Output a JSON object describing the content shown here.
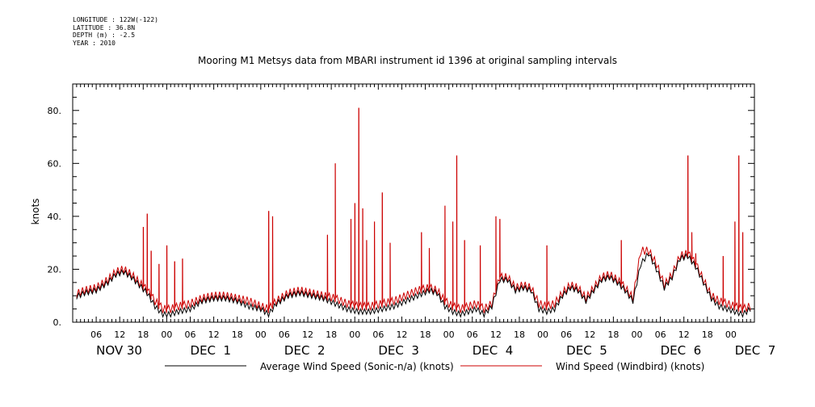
{
  "header": {
    "longitude": "LONGITUDE : 122W(-122)",
    "latitude": "LATITUDE : 36.8N",
    "depth": "DEPTH (m) : -2.5",
    "year": "YEAR : 2010"
  },
  "chart_data": {
    "type": "line",
    "title": "Mooring M1 Metsys data from MBARI instrument id 1396 at original sampling intervals",
    "ylabel": "knots",
    "xlabel": "",
    "ylim": [
      0,
      90
    ],
    "yticks": [
      0,
      20,
      40,
      60,
      80
    ],
    "ytick_labels": [
      "0.",
      "20.",
      "40.",
      "60.",
      "80."
    ],
    "xlim": [
      0,
      174
    ],
    "x_units": "hours since NOV 30 00:00, 2010",
    "hour_tick_labels": [
      {
        "x": 6,
        "label": "06"
      },
      {
        "x": 12,
        "label": "12"
      },
      {
        "x": 18,
        "label": "18"
      },
      {
        "x": 24,
        "label": "00"
      },
      {
        "x": 30,
        "label": "06"
      },
      {
        "x": 36,
        "label": "12"
      },
      {
        "x": 42,
        "label": "18"
      },
      {
        "x": 48,
        "label": "00"
      },
      {
        "x": 54,
        "label": "06"
      },
      {
        "x": 60,
        "label": "12"
      },
      {
        "x": 66,
        "label": "18"
      },
      {
        "x": 72,
        "label": "00"
      },
      {
        "x": 78,
        "label": "06"
      },
      {
        "x": 84,
        "label": "12"
      },
      {
        "x": 90,
        "label": "18"
      },
      {
        "x": 96,
        "label": "00"
      },
      {
        "x": 102,
        "label": "06"
      },
      {
        "x": 108,
        "label": "12"
      },
      {
        "x": 114,
        "label": "18"
      },
      {
        "x": 120,
        "label": "00"
      },
      {
        "x": 126,
        "label": "06"
      },
      {
        "x": 132,
        "label": "12"
      },
      {
        "x": 138,
        "label": "18"
      },
      {
        "x": 144,
        "label": "00"
      },
      {
        "x": 150,
        "label": "06"
      },
      {
        "x": 156,
        "label": "12"
      },
      {
        "x": 162,
        "label": "18"
      },
      {
        "x": 168,
        "label": "00"
      }
    ],
    "day_labels": [
      {
        "x": 6,
        "label": "NOV 30"
      },
      {
        "x": 30,
        "label": "DEC  1"
      },
      {
        "x": 54,
        "label": "DEC  2"
      },
      {
        "x": 78,
        "label": "DEC  3"
      },
      {
        "x": 102,
        "label": "DEC  4"
      },
      {
        "x": 126,
        "label": "DEC  5"
      },
      {
        "x": 150,
        "label": "DEC  6"
      },
      {
        "x": 169,
        "label": "DEC  7"
      }
    ],
    "series": [
      {
        "name": "Average Wind Speed (Sonic-n/a) (knots)",
        "color": "#000000",
        "x": [
          0,
          3,
          6,
          9,
          11,
          13,
          15,
          17,
          19,
          21,
          23,
          25,
          27,
          30,
          33,
          36,
          39,
          42,
          45,
          48,
          50,
          52,
          55,
          58,
          61,
          64,
          67,
          70,
          73,
          76,
          79,
          82,
          85,
          88,
          91,
          93,
          95,
          97,
          99,
          101,
          103,
          105,
          107,
          109,
          111,
          113,
          115,
          117,
          119,
          121,
          123,
          125,
          127,
          129,
          131,
          133,
          135,
          137,
          139,
          141,
          143,
          145,
          147,
          149,
          151,
          153,
          155,
          157,
          159,
          161,
          163,
          165,
          167,
          169,
          171,
          173
        ],
        "y": [
          9,
          11,
          12,
          15,
          18,
          19,
          17,
          14,
          11,
          6,
          3,
          3,
          4,
          5,
          8,
          9,
          9,
          8,
          6,
          5,
          3,
          7,
          10,
          11,
          10,
          9,
          7,
          5,
          4,
          4,
          5,
          6,
          8,
          10,
          12,
          11,
          6,
          4,
          3,
          4,
          5,
          3,
          6,
          16,
          16,
          12,
          13,
          12,
          5,
          4,
          5,
          10,
          13,
          12,
          8,
          12,
          16,
          17,
          15,
          12,
          8,
          22,
          26,
          20,
          13,
          17,
          24,
          25,
          21,
          15,
          9,
          6,
          5,
          4,
          3,
          5
        ]
      },
      {
        "name": "Wind Speed (Windbird) (knots)",
        "color": "#cc0000",
        "x": [
          0,
          3,
          6,
          9,
          11,
          13,
          15,
          17,
          19,
          21,
          23,
          25,
          27,
          30,
          33,
          36,
          39,
          42,
          45,
          48,
          50,
          52,
          55,
          58,
          61,
          64,
          67,
          70,
          73,
          76,
          79,
          82,
          85,
          88,
          91,
          93,
          95,
          97,
          99,
          101,
          103,
          105,
          107,
          109,
          111,
          113,
          115,
          117,
          119,
          121,
          123,
          125,
          127,
          129,
          131,
          133,
          135,
          137,
          139,
          141,
          143,
          145,
          147,
          149,
          151,
          153,
          155,
          157,
          159,
          161,
          163,
          165,
          167,
          169,
          171,
          173
        ],
        "y": [
          10,
          12,
          13,
          16,
          19,
          20,
          18,
          15,
          12,
          8,
          5,
          5,
          6,
          7,
          9,
          10,
          10,
          9,
          8,
          6,
          5,
          8,
          11,
          12,
          11,
          10,
          9,
          7,
          6,
          6,
          7,
          8,
          10,
          12,
          13,
          12,
          8,
          6,
          5,
          6,
          7,
          5,
          7,
          17,
          17,
          13,
          14,
          13,
          7,
          6,
          7,
          11,
          14,
          13,
          9,
          13,
          17,
          18,
          16,
          13,
          9,
          27,
          27,
          22,
          14,
          18,
          25,
          26,
          22,
          16,
          10,
          8,
          7,
          6,
          5,
          6
        ],
        "spikes": [
          {
            "x": 18,
            "y": 36
          },
          {
            "x": 19,
            "y": 41
          },
          {
            "x": 20,
            "y": 27
          },
          {
            "x": 22,
            "y": 22
          },
          {
            "x": 24,
            "y": 29
          },
          {
            "x": 26,
            "y": 23
          },
          {
            "x": 28,
            "y": 24
          },
          {
            "x": 50,
            "y": 42
          },
          {
            "x": 51,
            "y": 40
          },
          {
            "x": 65,
            "y": 33
          },
          {
            "x": 67,
            "y": 60
          },
          {
            "x": 71,
            "y": 39
          },
          {
            "x": 72,
            "y": 45
          },
          {
            "x": 73,
            "y": 81
          },
          {
            "x": 74,
            "y": 43
          },
          {
            "x": 75,
            "y": 31
          },
          {
            "x": 77,
            "y": 38
          },
          {
            "x": 79,
            "y": 49
          },
          {
            "x": 81,
            "y": 30
          },
          {
            "x": 89,
            "y": 34
          },
          {
            "x": 91,
            "y": 28
          },
          {
            "x": 95,
            "y": 44
          },
          {
            "x": 97,
            "y": 38
          },
          {
            "x": 98,
            "y": 63
          },
          {
            "x": 100,
            "y": 31
          },
          {
            "x": 104,
            "y": 29
          },
          {
            "x": 108,
            "y": 40
          },
          {
            "x": 109,
            "y": 39
          },
          {
            "x": 121,
            "y": 29
          },
          {
            "x": 140,
            "y": 31
          },
          {
            "x": 157,
            "y": 63
          },
          {
            "x": 158,
            "y": 34
          },
          {
            "x": 159,
            "y": 26
          },
          {
            "x": 166,
            "y": 25
          },
          {
            "x": 169,
            "y": 38
          },
          {
            "x": 170,
            "y": 63
          },
          {
            "x": 171,
            "y": 34
          }
        ]
      }
    ],
    "legend_placement": "bottom"
  }
}
